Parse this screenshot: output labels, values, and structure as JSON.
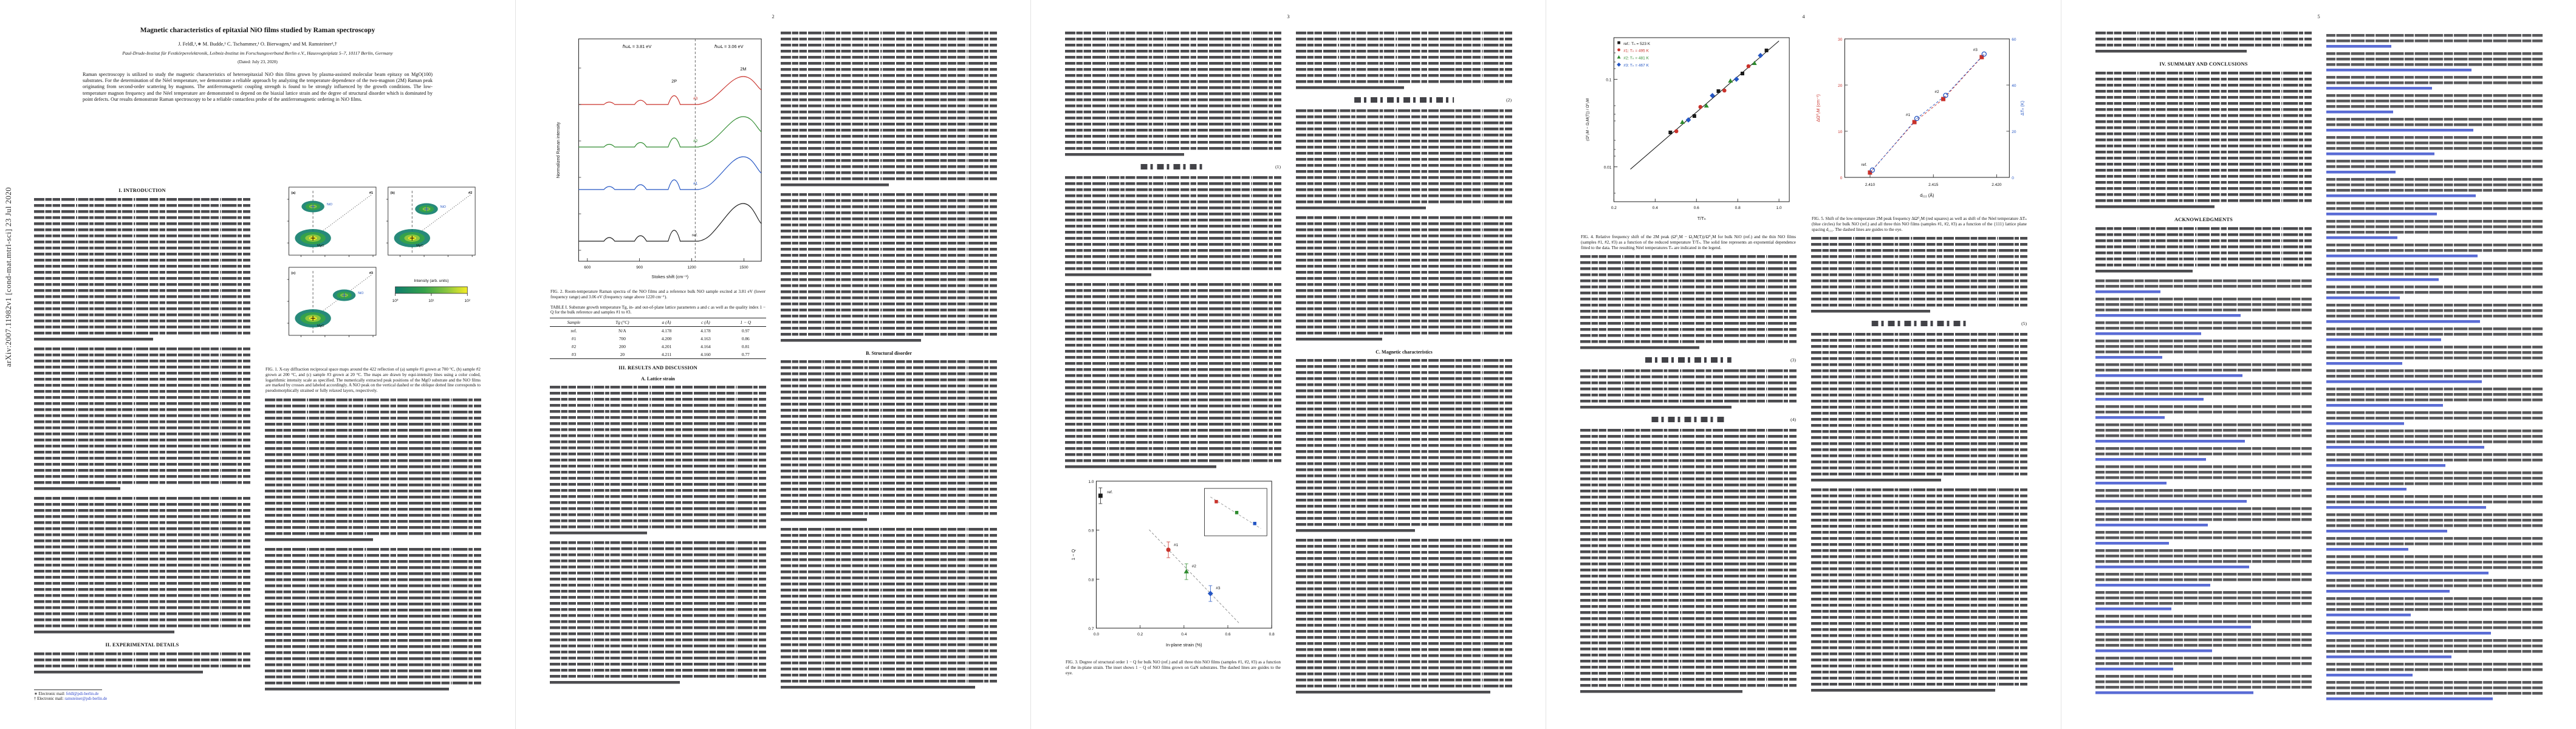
{
  "colors": {
    "link_blue": "#2b43c9",
    "series_red": "#c9322b",
    "series_green": "#2e8b2e",
    "series_blue": "#2456c4",
    "series_black": "#1a1a1a",
    "map_scale": [
      "#0f7d6c",
      "#35a14b",
      "#8cc63f",
      "#f4ec27"
    ]
  },
  "arxiv_sidebar": "arXiv:2007.11982v1  [cond-mat.mtrl-sci]  23 Jul 2020",
  "page_numbers": [
    "2",
    "3",
    "4",
    "5"
  ],
  "paper": {
    "title": "Magnetic characteristics of epitaxial NiO films studied by Raman spectroscopy",
    "authors": "J. Feldl,¹,∗ M. Budde,¹ C. Tschammer,¹ O. Bierwagen,¹ and M. Ramsteiner¹,†",
    "affiliation": "Paul-Drude-Institut für Festkörperelektronik, Leibniz-Institut im Forschungsverbund Berlin e.V., Hausvogteiplatz 5–7, 10117 Berlin, Germany",
    "dated": "(Dated: July 23, 2020)",
    "abstract": "Raman spectroscopy is utilized to study the magnetic characteristics of heteroepitaxial NiO thin films grown by plasma-assisted molecular beam epitaxy on MgO(100) substrates. For the determination of the Néel temperature, we demonstrate a reliable approach by analyzing the temperature dependence of the two-magnon (2M) Raman peak originating from second-order scattering by magnons. The antiferromagnetic coupling strength is found to be strongly influenced by the growth conditions. The low-temperature magnon frequency and the Néel temperature are demonstrated to depend on the biaxial lattice strain and the degree of structural disorder which is dominated by point defects. Our results demonstrate Raman spectroscopy to be a reliable contactless probe of the antiferromagnetic ordering in NiO films.",
    "footnotes": [
      {
        "marker": "∗",
        "label": "Electronic mail:",
        "link": "feldl@pdi-berlin.de"
      },
      {
        "marker": "†",
        "label": "Electronic mail:",
        "link": "ramsteiner@pdi-berlin.de"
      }
    ]
  },
  "headings": {
    "intro": "I. INTRODUCTION",
    "experimental": "II. EXPERIMENTAL DETAILS",
    "results": "III. RESULTS AND DISCUSSION",
    "lattice": "A. Lattice strain",
    "disorder": "B. Structural disorder",
    "magnetic": "C. Magnetic characteristics",
    "summary": "IV. SUMMARY AND CONCLUSIONS",
    "ack": "ACKNOWLEDGMENTS"
  },
  "equations": {
    "e1": "(1)",
    "e2": "(2)",
    "e3": "(3)",
    "e4": "(4)",
    "e5": "(5)"
  },
  "figures": {
    "fig1": {
      "caption": "FIG. 1. X-ray diffraction reciprocal space maps around the 422 reflection of (a) sample #1 grown at 700 °C, (b) sample #2 grown at 200 °C, and (c) sample #3 grown at 20 °C. The maps are drawn by equi-intensity lines using a color coded, logarithmic intensity scale as specified. The numerically extracted peak positions of the MgO substrate and the NiO films are marked by crosses and labeled accordingly. A NiO peak on the vertical dashed or the oblique dotted line corresponds to pseudomorphically strained or fully relaxed layers, respectively.",
      "panels": [
        {
          "tag": "(a)",
          "sample": "#1"
        },
        {
          "tag": "(b)",
          "sample": "#2"
        },
        {
          "tag": "(c)",
          "sample": "#3"
        }
      ],
      "substrate_label": "MgO",
      "film_label": "NiO",
      "colorbar_label": "Intensity (arb. units)",
      "colorbar_ticks": [
        "10⁰",
        "10¹",
        "10²"
      ]
    },
    "fig2": {
      "caption": "FIG. 2. Room-temperature Raman spectra of the NiO films and a reference bulk NiO sample excited at 3.81 eV (lower frequency range) and 3.06 eV (frequency range above 1220 cm⁻¹).",
      "ylabel": "Normalized Raman intensity",
      "xlabel": "Stokes shift (cm⁻¹)",
      "xticks": [
        "600",
        "900",
        "1200",
        "1500"
      ],
      "excitations": [
        "ℏωL = 3.81 eV",
        "ℏωL = 3.06 eV"
      ],
      "peaks": {
        "twophonon": "2P",
        "twomagnon": "2M"
      },
      "traces": [
        "#3",
        "#2",
        "#1",
        "ref."
      ]
    },
    "table1": {
      "caption": "TABLE I. Substrate growth temperature Tg, in- and out-of-plane lattice parameters a and c as well as the quality index 1 − Q for the bulk reference and samples #1 to #3.",
      "headers": [
        "Sample",
        "Tg (°C)",
        "a (Å)",
        "c (Å)",
        "1 − Q"
      ],
      "rows": [
        [
          "ref.",
          "N/A",
          "4.178",
          "4.178",
          "0.97"
        ],
        [
          "#1",
          "700",
          "4.200",
          "4.163",
          "0.86"
        ],
        [
          "#2",
          "200",
          "4.201",
          "4.164",
          "0.81"
        ],
        [
          "#3",
          "20",
          "4.211",
          "4.160",
          "0.77"
        ]
      ]
    },
    "fig3": {
      "caption": "FIG. 3. Degree of structural order 1 − Q for bulk NiO (ref.) and all three thin NiO films (samples #1, #2, #3) as a function of the in-plane strain. The inset shows 1 − Q of NiO films grown on GaN substrates. The dashed lines are guides to the eye.",
      "xlabel": "In-plane strain (%)",
      "ylabel": "1 − Q",
      "xticks": [
        "0.0",
        "0.2",
        "0.4",
        "0.6",
        "0.8"
      ],
      "yticks": [
        "1.0",
        "0.9",
        "0.8",
        "0.7"
      ],
      "points": [
        {
          "label": "ref.",
          "strain": 0.02,
          "one_minus_q": 0.97
        },
        {
          "label": "#1",
          "strain": 0.33,
          "one_minus_q": 0.86
        },
        {
          "label": "#2",
          "strain": 0.41,
          "one_minus_q": 0.815
        },
        {
          "label": "#3",
          "strain": 0.52,
          "one_minus_q": 0.77
        }
      ]
    },
    "fig4": {
      "caption": "FIG. 4. Relative frequency shift of the 2M peak (Ω⁰₂M − Ω₂M(T))/Ω⁰₂M for bulk NiO (ref.) and the thin NiO films (samples #1, #2, #3) as a function of the reduced temperature T/Tₙ. The solid line represents an exponential dependence fitted to the data. The resulting Néel temperatures Tₙ are indicated in the legend.",
      "ylabel": "(Ω⁰₂M − Ω₂M(T)) / Ω⁰₂M",
      "xlabel": "T/Tₙ",
      "xticks": [
        "0.2",
        "0.4",
        "0.6",
        "0.8",
        "1.0"
      ],
      "yticks": [
        "0.1",
        "0.01"
      ],
      "legend": [
        "ref.:  Tₙ = 523 K",
        "#1:  Tₙ = 495 K",
        "#2:  Tₙ = 481 K",
        "#3:  Tₙ = 467 K"
      ]
    },
    "fig5": {
      "caption": "FIG. 5. Shift of the low-temperature 2M peak frequency ΔΩ⁰₂M (red squares) as well as shift of the Néel temperature ΔTₙ (blue circles) for bulk NiO (ref.) and all three thin NiO films (samples #1, #2, #3) as a function of the {111} lattice plane spacing d₁₁₁. The dashed lines are guides to the eye.",
      "xlabel": "d₁₁₁ (Å)",
      "ylabel_left": "ΔΩ⁰₂M (cm⁻¹)",
      "ylabel_right": "ΔTₙ (K)",
      "xticks": [
        "2.410",
        "2.415",
        "2.420"
      ],
      "yticks_left": [
        "30",
        "20",
        "10",
        "0"
      ],
      "yticks_right": [
        "60",
        "40",
        "20",
        "0"
      ],
      "point_labels": [
        "ref.",
        "#1",
        "#2",
        "#3"
      ],
      "freq_shift_points": [
        [
          2.41,
          1
        ],
        [
          2.4135,
          12
        ],
        [
          2.4158,
          17
        ],
        [
          2.4188,
          26
        ]
      ],
      "tn_shift_points": [
        [
          2.41,
          2
        ],
        [
          2.4135,
          25
        ],
        [
          2.4158,
          35
        ],
        [
          2.4188,
          53
        ]
      ]
    }
  }
}
